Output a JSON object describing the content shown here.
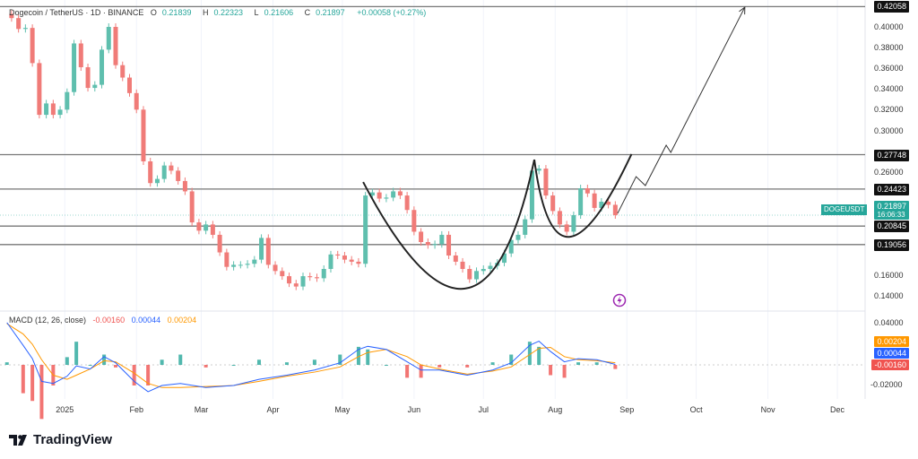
{
  "header": {
    "symbol": "Dogecoin / TetherUS · 1D · BINANCE",
    "open_label": "O",
    "open": "0.21839",
    "high_label": "H",
    "high": "0.22323",
    "low_label": "L",
    "low": "0.21606",
    "close_label": "C",
    "close": "0.21897",
    "change": "+0.00058 (+0.27%)"
  },
  "macd_legend": {
    "label": "MACD (12, 26, close)",
    "hist": "-0.00160",
    "macd": "0.00044",
    "signal": "0.00204"
  },
  "price_axis": [
    "0.40000",
    "0.38000",
    "0.36000",
    "0.34000",
    "0.32000",
    "0.30000",
    "0.26000",
    "0.16000",
    "0.14000"
  ],
  "macd_axis": [
    "0.04000",
    "-0.02000"
  ],
  "levels": [
    "0.42058",
    "0.27748",
    "0.24423",
    "0.20845",
    "0.19056"
  ],
  "current": {
    "symbol": "DOGEUSDT",
    "price": "0.21897",
    "countdown": "16:06:33"
  },
  "macd_badges": {
    "signal": "0.00204",
    "macd": "0.00044",
    "hist": "-0.00160"
  },
  "time_axis": [
    "2025",
    "Feb",
    "Mar",
    "Apr",
    "May",
    "Jun",
    "Jul",
    "Aug",
    "Sep",
    "Oct",
    "Nov",
    "Dec"
  ],
  "brand": "TradingView",
  "colors": {
    "up": "#26a69a",
    "down": "#ef5350",
    "macd": "#2962ff",
    "signal": "#ff9800",
    "level": "#555555",
    "drawing": "#222222",
    "badge_current": "#26a69a"
  },
  "chart_data": {
    "type": "candlestick",
    "x_range": [
      "2024-12-04",
      "2025-12-13"
    ],
    "y_range": [
      0.128,
      0.427
    ],
    "macd_range": [
      -0.0287,
      0.0496
    ],
    "grid": true,
    "closes": [
      [
        "2024-12-09",
        0.4095
      ],
      [
        "2024-12-12",
        0.399
      ],
      [
        "2024-12-15",
        0.4
      ],
      [
        "2024-12-18",
        0.366
      ],
      [
        "2024-12-21",
        0.316
      ],
      [
        "2024-12-24",
        0.327
      ],
      [
        "2024-12-27",
        0.316
      ],
      [
        "2024-12-30",
        0.321
      ],
      [
        "2025-01-02",
        0.338
      ],
      [
        "2025-01-05",
        0.385
      ],
      [
        "2025-01-08",
        0.362
      ],
      [
        "2025-01-11",
        0.342
      ],
      [
        "2025-01-14",
        0.345
      ],
      [
        "2025-01-17",
        0.379
      ],
      [
        "2025-01-20",
        0.401
      ],
      [
        "2025-01-23",
        0.364
      ],
      [
        "2025-01-26",
        0.352
      ],
      [
        "2025-01-29",
        0.337
      ],
      [
        "2025-02-01",
        0.321
      ],
      [
        "2025-02-04",
        0.271
      ],
      [
        "2025-02-07",
        0.25
      ],
      [
        "2025-02-10",
        0.254
      ],
      [
        "2025-02-13",
        0.267
      ],
      [
        "2025-02-16",
        0.262
      ],
      [
        "2025-02-19",
        0.252
      ],
      [
        "2025-02-22",
        0.242
      ],
      [
        "2025-02-25",
        0.212
      ],
      [
        "2025-02-28",
        0.204
      ],
      [
        "2025-03-03",
        0.21
      ],
      [
        "2025-03-06",
        0.2
      ],
      [
        "2025-03-09",
        0.183
      ],
      [
        "2025-03-12",
        0.169
      ],
      [
        "2025-03-15",
        0.171
      ],
      [
        "2025-03-18",
        0.171
      ],
      [
        "2025-03-21",
        0.172
      ],
      [
        "2025-03-24",
        0.176
      ],
      [
        "2025-03-27",
        0.197
      ],
      [
        "2025-03-30",
        0.171
      ],
      [
        "2025-04-02",
        0.165
      ],
      [
        "2025-04-05",
        0.16
      ],
      [
        "2025-04-08",
        0.153
      ],
      [
        "2025-04-11",
        0.15
      ],
      [
        "2025-04-14",
        0.16
      ],
      [
        "2025-04-17",
        0.159
      ],
      [
        "2025-04-20",
        0.158
      ],
      [
        "2025-04-23",
        0.167
      ],
      [
        "2025-04-26",
        0.181
      ],
      [
        "2025-04-29",
        0.18
      ],
      [
        "2025-05-02",
        0.176
      ],
      [
        "2025-05-05",
        0.174
      ],
      [
        "2025-05-08",
        0.172
      ],
      [
        "2025-05-11",
        0.238
      ],
      [
        "2025-05-14",
        0.241
      ],
      [
        "2025-05-17",
        0.235
      ],
      [
        "2025-05-20",
        0.236
      ],
      [
        "2025-05-23",
        0.242
      ],
      [
        "2025-05-26",
        0.238
      ],
      [
        "2025-05-29",
        0.224
      ],
      [
        "2025-06-01",
        0.203
      ],
      [
        "2025-06-04",
        0.193
      ],
      [
        "2025-06-07",
        0.19
      ],
      [
        "2025-06-10",
        0.191
      ],
      [
        "2025-06-13",
        0.2
      ],
      [
        "2025-06-16",
        0.18
      ],
      [
        "2025-06-19",
        0.174
      ],
      [
        "2025-06-22",
        0.167
      ],
      [
        "2025-06-25",
        0.157
      ],
      [
        "2025-06-28",
        0.165
      ],
      [
        "2025-07-01",
        0.167
      ],
      [
        "2025-07-04",
        0.17
      ],
      [
        "2025-07-07",
        0.173
      ],
      [
        "2025-07-10",
        0.182
      ],
      [
        "2025-07-13",
        0.195
      ],
      [
        "2025-07-16",
        0.2
      ],
      [
        "2025-07-19",
        0.215
      ],
      [
        "2025-07-22",
        0.262
      ],
      [
        "2025-07-25",
        0.264
      ],
      [
        "2025-07-28",
        0.238
      ],
      [
        "2025-07-31",
        0.223
      ],
      [
        "2025-08-03",
        0.21
      ],
      [
        "2025-08-06",
        0.203
      ],
      [
        "2025-08-09",
        0.219
      ],
      [
        "2025-08-12",
        0.245
      ],
      [
        "2025-08-15",
        0.24
      ],
      [
        "2025-08-18",
        0.226
      ],
      [
        "2025-08-21",
        0.232
      ],
      [
        "2025-08-24",
        0.229
      ],
      [
        "2025-08-27",
        0.21897
      ]
    ],
    "macd": [
      [
        "2024-12-07",
        0.041,
        0.04
      ],
      [
        "2024-12-14",
        0.019,
        0.03
      ],
      [
        "2024-12-18",
        0.006,
        0.02
      ],
      [
        "2024-12-22",
        -0.016,
        0.005
      ],
      [
        "2024-12-27",
        -0.018,
        -0.01
      ],
      [
        "2025-01-02",
        -0.011,
        -0.014
      ],
      [
        "2025-01-06",
        -0.001,
        -0.01
      ],
      [
        "2025-01-12",
        -0.004,
        -0.004
      ],
      [
        "2025-01-18",
        0.008,
        0.004
      ],
      [
        "2025-01-23",
        0.002,
        0.003
      ],
      [
        "2025-01-31",
        -0.016,
        -0.008
      ],
      [
        "2025-02-06",
        -0.026,
        -0.018
      ],
      [
        "2025-02-12",
        -0.02,
        -0.022
      ],
      [
        "2025-02-20",
        -0.018,
        -0.022
      ],
      [
        "2025-03-03",
        -0.022,
        -0.021
      ],
      [
        "2025-03-15",
        -0.02,
        -0.02
      ],
      [
        "2025-03-26",
        -0.014,
        -0.016
      ],
      [
        "2025-04-07",
        -0.01,
        -0.011
      ],
      [
        "2025-04-19",
        -0.005,
        -0.007
      ],
      [
        "2025-04-30",
        0.002,
        -0.002
      ],
      [
        "2025-05-08",
        0.015,
        0.008
      ],
      [
        "2025-05-12",
        0.018,
        0.012
      ],
      [
        "2025-05-20",
        0.015,
        0.015
      ],
      [
        "2025-05-29",
        0.003,
        0.008
      ],
      [
        "2025-06-04",
        -0.005,
        0.0
      ],
      [
        "2025-06-12",
        -0.005,
        -0.004
      ],
      [
        "2025-06-24",
        -0.01,
        -0.009
      ],
      [
        "2025-07-05",
        -0.005,
        -0.006
      ],
      [
        "2025-07-13",
        0.002,
        -0.002
      ],
      [
        "2025-07-21",
        0.019,
        0.01
      ],
      [
        "2025-07-25",
        0.023,
        0.016
      ],
      [
        "2025-07-30",
        0.013,
        0.017
      ],
      [
        "2025-08-05",
        0.003,
        0.008
      ],
      [
        "2025-08-11",
        0.006,
        0.005
      ],
      [
        "2025-08-19",
        0.005,
        0.004
      ],
      [
        "2025-08-27",
        0.00044,
        0.00204
      ]
    ],
    "drawings": {
      "cup": [
        [
          "2025-05-10",
          0.251
        ],
        [
          "2025-06-23",
          0.148
        ],
        [
          "2025-07-23",
          0.2727
        ]
      ],
      "handle": [
        [
          "2025-07-23",
          0.2727
        ],
        [
          "2025-08-07",
          0.198
        ],
        [
          "2025-09-03",
          0.278
        ]
      ],
      "projection": [
        [
          "2025-08-28",
          0.2207
        ],
        [
          "2025-09-05",
          0.2562
        ],
        [
          "2025-09-09",
          0.2476
        ],
        [
          "2025-09-18",
          0.2866
        ],
        [
          "2025-09-20",
          0.2797
        ],
        [
          "2025-10-22",
          0.42
        ]
      ]
    }
  }
}
